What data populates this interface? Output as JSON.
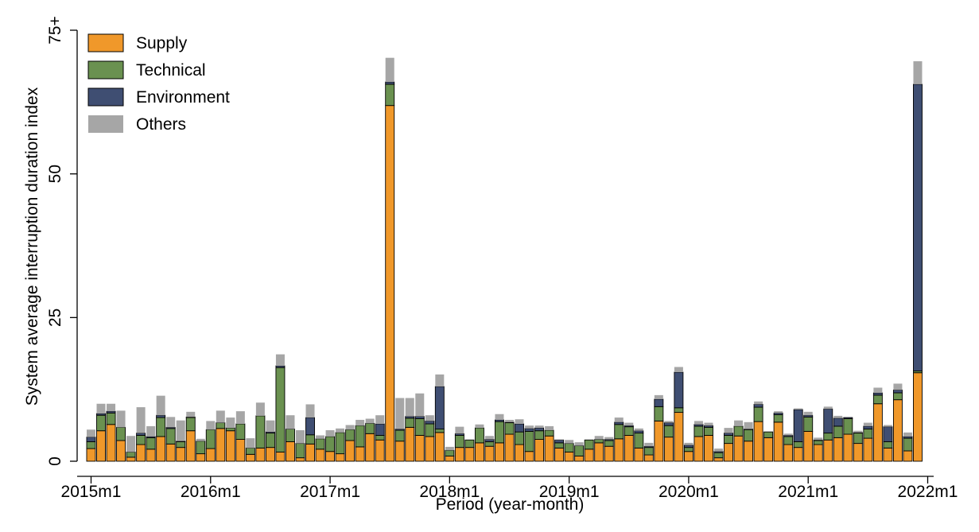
{
  "chart_data": {
    "type": "bar",
    "stacked": true,
    "title": "",
    "xlabel": "Period (year-month)",
    "ylabel": "System average interruption duration index",
    "ylim": [
      0,
      75
    ],
    "y_ticks": [
      {
        "value": 0,
        "label": "0"
      },
      {
        "value": 25,
        "label": "25"
      },
      {
        "value": 50,
        "label": "50"
      },
      {
        "value": 75,
        "label": "75+"
      }
    ],
    "x_ticks": [
      {
        "index": 0,
        "label": "2015m1"
      },
      {
        "index": 12,
        "label": "2016m1"
      },
      {
        "index": 24,
        "label": "2017m1"
      },
      {
        "index": 36,
        "label": "2018m1"
      },
      {
        "index": 48,
        "label": "2019m1"
      },
      {
        "index": 60,
        "label": "2020m1"
      },
      {
        "index": 72,
        "label": "2021m1"
      },
      {
        "index": 84,
        "label": "2022m1"
      }
    ],
    "legend_position": "top-left",
    "grid": false,
    "series": [
      {
        "name": "Supply",
        "color": "#f0982a",
        "values": [
          2.2,
          5.3,
          6.4,
          3.6,
          0.7,
          2.9,
          2.1,
          4.3,
          3.0,
          2.4,
          5.3,
          1.3,
          2.2,
          5.7,
          5.3,
          3.8,
          1.2,
          2.3,
          2.4,
          1.6,
          3.4,
          0.6,
          3.0,
          2.1,
          1.7,
          1.3,
          3.6,
          2.5,
          4.8,
          3.7,
          61.9,
          3.5,
          5.9,
          4.5,
          4.3,
          5.0,
          0.9,
          2.4,
          2.4,
          3.2,
          2.6,
          3.2,
          4.7,
          2.9,
          1.7,
          3.8,
          4.4,
          2.3,
          1.6,
          0.9,
          2.1,
          3.2,
          2.6,
          3.9,
          4.5,
          2.3,
          1.1,
          7.0,
          4.2,
          8.5,
          1.7,
          4.3,
          4.5,
          0.6,
          3.1,
          4.4,
          3.5,
          6.9,
          4.1,
          6.8,
          2.9,
          2.4,
          5.2,
          2.9,
          3.7,
          4.1,
          4.7,
          3.1,
          4.0,
          10.0,
          2.3,
          10.7,
          1.8,
          15.4
        ]
      },
      {
        "name": "Technical",
        "color": "#6a9150",
        "values": [
          1.2,
          2.7,
          2.0,
          2.3,
          0.9,
          1.6,
          2.0,
          3.3,
          2.7,
          1.0,
          2.3,
          2.2,
          3.3,
          1.0,
          0.5,
          2.7,
          1.1,
          5.6,
          2.5,
          14.7,
          2.2,
          2.5,
          1.6,
          1.8,
          2.6,
          3.7,
          1.9,
          3.7,
          1.8,
          0.8,
          3.7,
          1.9,
          1.6,
          2.9,
          2.2,
          0.6,
          1.0,
          2.1,
          1.3,
          2.6,
          0.8,
          3.7,
          2.0,
          2.2,
          3.5,
          1.5,
          1.0,
          0.9,
          1.5,
          1.8,
          1.6,
          0.6,
          1.0,
          2.5,
          1.5,
          2.6,
          1.3,
          2.5,
          2.0,
          0.8,
          0.7,
          1.8,
          1.4,
          0.9,
          1.4,
          1.7,
          2.0,
          2.5,
          1.0,
          1.3,
          1.4,
          1.0,
          2.5,
          0.7,
          1.2,
          2.0,
          2.7,
          1.8,
          1.6,
          1.5,
          1.1,
          1.2,
          2.2,
          0.3
        ]
      },
      {
        "name": "Environment",
        "color": "#3f4e72",
        "values": [
          0.8,
          0.3,
          0.3,
          0,
          0,
          0.4,
          0.2,
          0.4,
          0.2,
          0.1,
          0.1,
          0,
          0,
          0,
          0,
          0,
          0,
          0,
          0.2,
          0.3,
          0,
          0,
          3.0,
          0,
          0,
          0,
          0,
          0,
          0,
          2.0,
          0.4,
          0.2,
          0.3,
          0.4,
          0.5,
          7.4,
          0,
          0.3,
          0,
          0,
          0.4,
          0.3,
          0.1,
          1.4,
          0.5,
          0.5,
          0,
          0.5,
          0,
          0,
          0,
          0,
          0.2,
          0.4,
          0.2,
          0.4,
          0.2,
          1.3,
          0.5,
          6.2,
          0.4,
          0.3,
          0.3,
          0.2,
          0.4,
          0,
          0.1,
          0.5,
          0,
          0.3,
          0.2,
          5.6,
          0.3,
          0.1,
          4.2,
          1.4,
          0.2,
          0.1,
          0.5,
          0.4,
          2.6,
          0.5,
          0.3,
          49.9
        ]
      },
      {
        "name": "Others",
        "color": "#a6a6a6",
        "values": [
          1.3,
          1.7,
          1.3,
          2.9,
          2.8,
          4.5,
          1.8,
          3.4,
          1.8,
          3.6,
          0.9,
          0.4,
          1.5,
          2.1,
          1.8,
          2.2,
          1.7,
          2.3,
          2.0,
          2.0,
          2.4,
          2.3,
          2.3,
          0.6,
          1.1,
          0.7,
          0.8,
          1.0,
          0.8,
          1.5,
          4.2,
          5.4,
          3.2,
          4.0,
          1.0,
          2.1,
          0.6,
          1.2,
          0,
          0.6,
          0.6,
          1.0,
          0.4,
          0.8,
          0.5,
          0.4,
          0.7,
          0.1,
          0.6,
          0.6,
          0,
          0.6,
          0.4,
          0.8,
          0.5,
          0.4,
          0.6,
          0.7,
          0.3,
          0.9,
          0.4,
          0.6,
          0.5,
          0.5,
          0.9,
          1.0,
          1.2,
          0.5,
          0,
          0.3,
          0.3,
          0.2,
          0.6,
          0.4,
          0.4,
          0.4,
          0,
          0.3,
          0.6,
          0.9,
          0.3,
          1.1,
          0.7,
          4.0
        ]
      }
    ]
  }
}
